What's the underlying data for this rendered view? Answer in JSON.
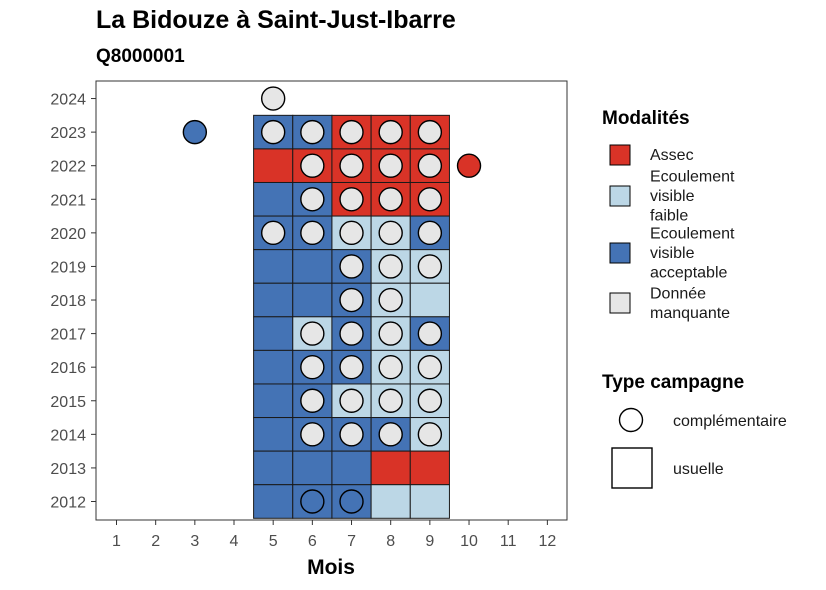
{
  "chart_data": {
    "type": "heatmap",
    "title": "La Bidouze à Saint-Just-Ibarre",
    "subtitle": "Q8000001",
    "xlabel": "Mois",
    "ylabel": "",
    "x_ticks": [
      "1",
      "2",
      "3",
      "4",
      "5",
      "6",
      "7",
      "8",
      "9",
      "10",
      "11",
      "12"
    ],
    "y_ticks": [
      "2012",
      "2013",
      "2014",
      "2015",
      "2016",
      "2017",
      "2018",
      "2019",
      "2020",
      "2021",
      "2022",
      "2023",
      "2024"
    ],
    "xlim": [
      1,
      12
    ],
    "ylim": [
      2012,
      2024
    ],
    "grid": false,
    "legend_position": "right",
    "colors": {
      "Assec": "#d93327",
      "Ecoulement visible faible": "#bcd7e6",
      "Ecoulement visible acceptable": "#4473b5",
      "Donnée manquante": "#e6e6e6",
      "cell_border": "#1a1a1a"
    },
    "legends": {
      "modalites": {
        "title": "Modalités",
        "items": [
          {
            "key": "Assec",
            "lines": [
              "Assec"
            ]
          },
          {
            "key": "Ecoulement visible faible",
            "lines": [
              "Ecoulement",
              "visible",
              "faible"
            ]
          },
          {
            "key": "Ecoulement visible acceptable",
            "lines": [
              "Ecoulement",
              "visible",
              "acceptable"
            ]
          },
          {
            "key": "Donnée manquante",
            "lines": [
              "Donnée",
              "manquante"
            ]
          }
        ]
      },
      "type_campagne": {
        "title": "Type campagne",
        "items": [
          "complémentaire",
          "usuelle"
        ]
      }
    },
    "usuelle_cells": [
      {
        "year": 2023,
        "month": 5,
        "modalite": "Ecoulement visible acceptable"
      },
      {
        "year": 2023,
        "month": 6,
        "modalite": "Ecoulement visible acceptable"
      },
      {
        "year": 2023,
        "month": 7,
        "modalite": "Assec"
      },
      {
        "year": 2023,
        "month": 8,
        "modalite": "Assec"
      },
      {
        "year": 2023,
        "month": 9,
        "modalite": "Assec"
      },
      {
        "year": 2022,
        "month": 5,
        "modalite": "Assec"
      },
      {
        "year": 2022,
        "month": 6,
        "modalite": "Assec"
      },
      {
        "year": 2022,
        "month": 7,
        "modalite": "Assec"
      },
      {
        "year": 2022,
        "month": 8,
        "modalite": "Assec"
      },
      {
        "year": 2022,
        "month": 9,
        "modalite": "Assec"
      },
      {
        "year": 2021,
        "month": 5,
        "modalite": "Ecoulement visible acceptable"
      },
      {
        "year": 2021,
        "month": 6,
        "modalite": "Ecoulement visible acceptable"
      },
      {
        "year": 2021,
        "month": 7,
        "modalite": "Assec"
      },
      {
        "year": 2021,
        "month": 8,
        "modalite": "Assec"
      },
      {
        "year": 2021,
        "month": 9,
        "modalite": "Assec"
      },
      {
        "year": 2020,
        "month": 5,
        "modalite": "Ecoulement visible acceptable"
      },
      {
        "year": 2020,
        "month": 6,
        "modalite": "Ecoulement visible acceptable"
      },
      {
        "year": 2020,
        "month": 7,
        "modalite": "Ecoulement visible faible"
      },
      {
        "year": 2020,
        "month": 8,
        "modalite": "Ecoulement visible faible"
      },
      {
        "year": 2020,
        "month": 9,
        "modalite": "Ecoulement visible acceptable"
      },
      {
        "year": 2019,
        "month": 5,
        "modalite": "Ecoulement visible acceptable"
      },
      {
        "year": 2019,
        "month": 6,
        "modalite": "Ecoulement visible acceptable"
      },
      {
        "year": 2019,
        "month": 7,
        "modalite": "Ecoulement visible acceptable"
      },
      {
        "year": 2019,
        "month": 8,
        "modalite": "Ecoulement visible faible"
      },
      {
        "year": 2019,
        "month": 9,
        "modalite": "Ecoulement visible faible"
      },
      {
        "year": 2018,
        "month": 5,
        "modalite": "Ecoulement visible acceptable"
      },
      {
        "year": 2018,
        "month": 6,
        "modalite": "Ecoulement visible acceptable"
      },
      {
        "year": 2018,
        "month": 7,
        "modalite": "Ecoulement visible acceptable"
      },
      {
        "year": 2018,
        "month": 8,
        "modalite": "Ecoulement visible faible"
      },
      {
        "year": 2018,
        "month": 9,
        "modalite": "Ecoulement visible faible"
      },
      {
        "year": 2017,
        "month": 5,
        "modalite": "Ecoulement visible acceptable"
      },
      {
        "year": 2017,
        "month": 6,
        "modalite": "Ecoulement visible faible"
      },
      {
        "year": 2017,
        "month": 7,
        "modalite": "Ecoulement visible acceptable"
      },
      {
        "year": 2017,
        "month": 8,
        "modalite": "Ecoulement visible faible"
      },
      {
        "year": 2017,
        "month": 9,
        "modalite": "Ecoulement visible acceptable"
      },
      {
        "year": 2016,
        "month": 5,
        "modalite": "Ecoulement visible acceptable"
      },
      {
        "year": 2016,
        "month": 6,
        "modalite": "Ecoulement visible acceptable"
      },
      {
        "year": 2016,
        "month": 7,
        "modalite": "Ecoulement visible acceptable"
      },
      {
        "year": 2016,
        "month": 8,
        "modalite": "Ecoulement visible faible"
      },
      {
        "year": 2016,
        "month": 9,
        "modalite": "Ecoulement visible faible"
      },
      {
        "year": 2015,
        "month": 5,
        "modalite": "Ecoulement visible acceptable"
      },
      {
        "year": 2015,
        "month": 6,
        "modalite": "Ecoulement visible acceptable"
      },
      {
        "year": 2015,
        "month": 7,
        "modalite": "Ecoulement visible faible"
      },
      {
        "year": 2015,
        "month": 8,
        "modalite": "Ecoulement visible faible"
      },
      {
        "year": 2015,
        "month": 9,
        "modalite": "Ecoulement visible faible"
      },
      {
        "year": 2014,
        "month": 5,
        "modalite": "Ecoulement visible acceptable"
      },
      {
        "year": 2014,
        "month": 6,
        "modalite": "Ecoulement visible acceptable"
      },
      {
        "year": 2014,
        "month": 7,
        "modalite": "Ecoulement visible acceptable"
      },
      {
        "year": 2014,
        "month": 8,
        "modalite": "Ecoulement visible acceptable"
      },
      {
        "year": 2014,
        "month": 9,
        "modalite": "Ecoulement visible faible"
      },
      {
        "year": 2013,
        "month": 5,
        "modalite": "Ecoulement visible acceptable"
      },
      {
        "year": 2013,
        "month": 6,
        "modalite": "Ecoulement visible acceptable"
      },
      {
        "year": 2013,
        "month": 7,
        "modalite": "Ecoulement visible acceptable"
      },
      {
        "year": 2013,
        "month": 8,
        "modalite": "Assec"
      },
      {
        "year": 2013,
        "month": 9,
        "modalite": "Assec"
      },
      {
        "year": 2012,
        "month": 5,
        "modalite": "Ecoulement visible acceptable"
      },
      {
        "year": 2012,
        "month": 6,
        "modalite": "Ecoulement visible acceptable"
      },
      {
        "year": 2012,
        "month": 7,
        "modalite": "Ecoulement visible acceptable"
      },
      {
        "year": 2012,
        "month": 8,
        "modalite": "Ecoulement visible faible"
      },
      {
        "year": 2012,
        "month": 9,
        "modalite": "Ecoulement visible faible"
      }
    ],
    "complementaire_points": [
      {
        "year": 2024,
        "month": 5,
        "modalite": "Donnée manquante"
      },
      {
        "year": 2023,
        "month": 3,
        "modalite": "Ecoulement visible acceptable"
      },
      {
        "year": 2023,
        "month": 5,
        "modalite": "Donnée manquante"
      },
      {
        "year": 2023,
        "month": 6,
        "modalite": "Donnée manquante"
      },
      {
        "year": 2023,
        "month": 7,
        "modalite": "Donnée manquante"
      },
      {
        "year": 2023,
        "month": 8,
        "modalite": "Donnée manquante"
      },
      {
        "year": 2023,
        "month": 9,
        "modalite": "Donnée manquante"
      },
      {
        "year": 2022,
        "month": 6,
        "modalite": "Donnée manquante"
      },
      {
        "year": 2022,
        "month": 7,
        "modalite": "Donnée manquante"
      },
      {
        "year": 2022,
        "month": 8,
        "modalite": "Donnée manquante"
      },
      {
        "year": 2022,
        "month": 9,
        "modalite": "Donnée manquante"
      },
      {
        "year": 2022,
        "month": 10,
        "modalite": "Assec"
      },
      {
        "year": 2021,
        "month": 6,
        "modalite": "Donnée manquante"
      },
      {
        "year": 2021,
        "month": 7,
        "modalite": "Donnée manquante"
      },
      {
        "year": 2021,
        "month": 8,
        "modalite": "Donnée manquante"
      },
      {
        "year": 2021,
        "month": 9,
        "modalite": "Donnée manquante"
      },
      {
        "year": 2020,
        "month": 5,
        "modalite": "Donnée manquante"
      },
      {
        "year": 2020,
        "month": 6,
        "modalite": "Donnée manquante"
      },
      {
        "year": 2020,
        "month": 7,
        "modalite": "Donnée manquante"
      },
      {
        "year": 2020,
        "month": 8,
        "modalite": "Donnée manquante"
      },
      {
        "year": 2020,
        "month": 9,
        "modalite": "Donnée manquante"
      },
      {
        "year": 2019,
        "month": 7,
        "modalite": "Donnée manquante"
      },
      {
        "year": 2019,
        "month": 8,
        "modalite": "Donnée manquante"
      },
      {
        "year": 2019,
        "month": 9,
        "modalite": "Donnée manquante"
      },
      {
        "year": 2018,
        "month": 7,
        "modalite": "Donnée manquante"
      },
      {
        "year": 2018,
        "month": 8,
        "modalite": "Donnée manquante"
      },
      {
        "year": 2017,
        "month": 6,
        "modalite": "Donnée manquante"
      },
      {
        "year": 2017,
        "month": 7,
        "modalite": "Donnée manquante"
      },
      {
        "year": 2017,
        "month": 8,
        "modalite": "Donnée manquante"
      },
      {
        "year": 2017,
        "month": 9,
        "modalite": "Donnée manquante"
      },
      {
        "year": 2016,
        "month": 6,
        "modalite": "Donnée manquante"
      },
      {
        "year": 2016,
        "month": 7,
        "modalite": "Donnée manquante"
      },
      {
        "year": 2016,
        "month": 8,
        "modalite": "Donnée manquante"
      },
      {
        "year": 2016,
        "month": 9,
        "modalite": "Donnée manquante"
      },
      {
        "year": 2015,
        "month": 6,
        "modalite": "Donnée manquante"
      },
      {
        "year": 2015,
        "month": 7,
        "modalite": "Donnée manquante"
      },
      {
        "year": 2015,
        "month": 8,
        "modalite": "Donnée manquante"
      },
      {
        "year": 2015,
        "month": 9,
        "modalite": "Donnée manquante"
      },
      {
        "year": 2014,
        "month": 6,
        "modalite": "Donnée manquante"
      },
      {
        "year": 2014,
        "month": 7,
        "modalite": "Donnée manquante"
      },
      {
        "year": 2014,
        "month": 8,
        "modalite": "Donnée manquante"
      },
      {
        "year": 2014,
        "month": 9,
        "modalite": "Donnée manquante"
      },
      {
        "year": 2012,
        "month": 6,
        "modalite": "Ecoulement visible acceptable"
      },
      {
        "year": 2012,
        "month": 7,
        "modalite": "Ecoulement visible acceptable"
      }
    ]
  }
}
